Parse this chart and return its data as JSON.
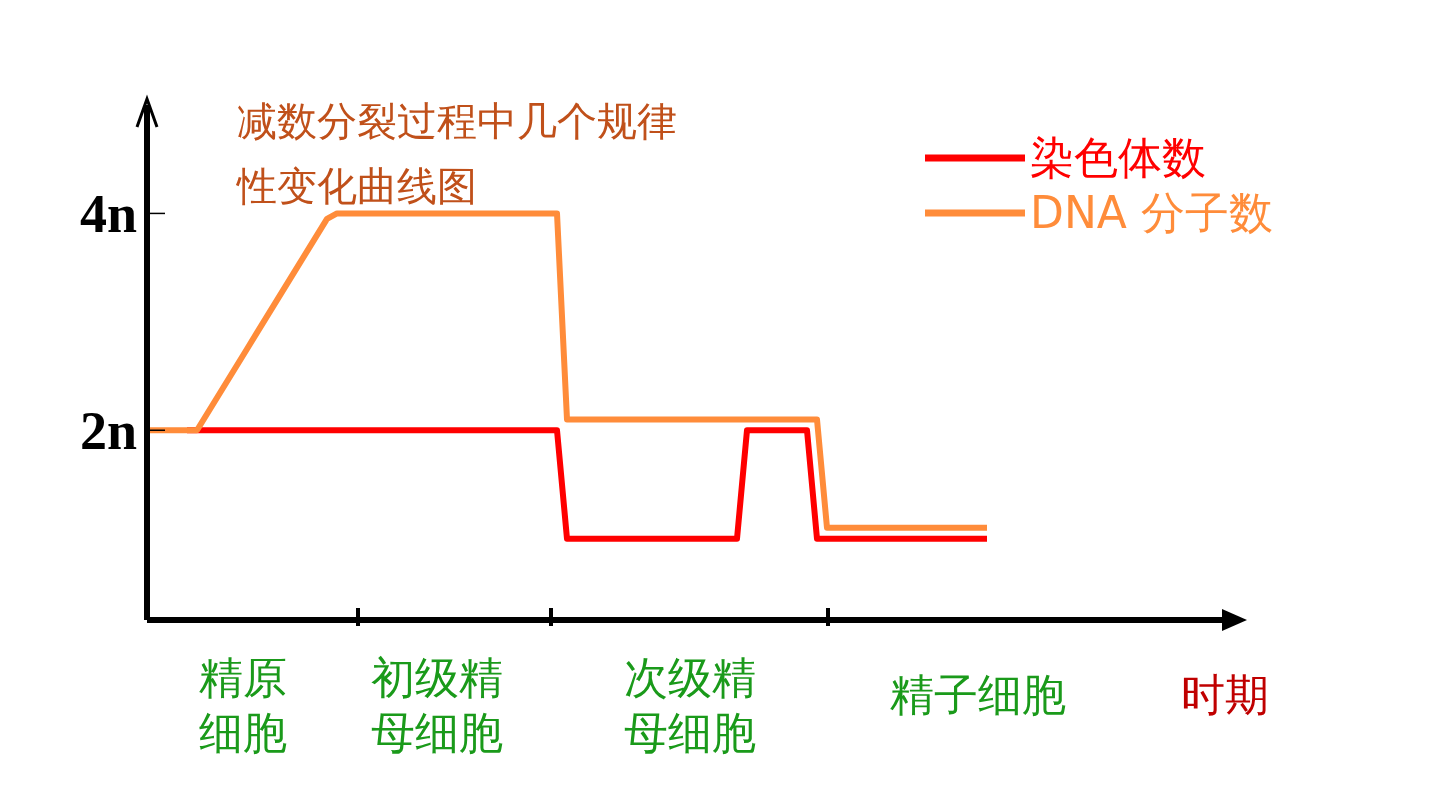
{
  "chart_data": {
    "type": "line",
    "title": "减数分裂过程中几个规律性变化曲线图",
    "xlabel": "时期",
    "categories": [
      null,
      null,
      null,
      null,
      null,
      null,
      null,
      null,
      null,
      null,
      null,
      null,
      null,
      null,
      null,
      null,
      null,
      null,
      null,
      null,
      null,
      null,
      null,
      null,
      null,
      null,
      null,
      null,
      null,
      null,
      null,
      null,
      null,
      null,
      null,
      null,
      null,
      null,
      null,
      null,
      null,
      null,
      null,
      null,
      null,
      null,
      null,
      null,
      null,
      null,
      null,
      null,
      null,
      null,
      null,
      null,
      null,
      null,
      null,
      null,
      null,
      null,
      null,
      null,
      null,
      null,
      null,
      null,
      null,
      null,
      null,
      null,
      null,
      null,
      null,
      null,
      null,
      null,
      null,
      null,
      null,
      null,
      null,
      null,
      null,
      null,
      null,
      null,
      null,
      null,
      null,
      null,
      null,
      null,
      null,
      null,
      null,
      null,
      null,
      null,
      null,
      null,
      null,
      null,
      null,
      null,
      null,
      null,
      null,
      null,
      null
    ],
    "ylim": [
      0.25,
      5
    ],
    "yticks": [
      {
        "value": 2,
        "label": "2n"
      },
      {
        "value": 4,
        "label": "4n"
      }
    ],
    "annotations": [
      "精原细胞",
      "初级精母细胞",
      "次级精母细胞",
      "精子细胞"
    ],
    "series": [
      {
        "name": "染色体数",
        "color": "#ff0000",
        "values": [
          null,
          null,
          null,
          null,
          2,
          2,
          2,
          2,
          2,
          2,
          2,
          2,
          2,
          2,
          2,
          2,
          2,
          2,
          2,
          2,
          2,
          2,
          2,
          2,
          2,
          2,
          2,
          2,
          2,
          2,
          2,
          2,
          2,
          2,
          2,
          2,
          2,
          2,
          2,
          2,
          2,
          2,
          1,
          1,
          1,
          1,
          1,
          1,
          1,
          1,
          1,
          1,
          1,
          1,
          1,
          1,
          1,
          1,
          1,
          1,
          2,
          2,
          2,
          2,
          2,
          2,
          2,
          1,
          1,
          1,
          1,
          1,
          1,
          1,
          1,
          1,
          1,
          1,
          1,
          1,
          1,
          1,
          1,
          1,
          1,
          null,
          null,
          null,
          null,
          null,
          null,
          null,
          null,
          null,
          null,
          null,
          null,
          null,
          null,
          null,
          null,
          null,
          null,
          null,
          null,
          null,
          null,
          null,
          null,
          null,
          null
        ]
      },
      {
        "name": "DNA 分子数",
        "color": "#ff8c3a",
        "values": [
          2,
          2,
          2,
          2,
          2,
          2,
          2.15,
          2.3,
          2.45,
          2.6,
          2.75,
          2.9,
          3.05,
          3.2,
          3.35,
          3.5,
          3.65,
          3.8,
          3.95,
          4,
          4,
          4,
          4,
          4,
          4,
          4,
          4,
          4,
          4,
          4,
          4,
          4,
          4,
          4,
          4,
          4,
          4,
          4,
          4,
          4,
          4,
          4,
          2.1,
          2.1,
          2.1,
          2.1,
          2.1,
          2.1,
          2.1,
          2.1,
          2.1,
          2.1,
          2.1,
          2.1,
          2.1,
          2.1,
          2.1,
          2.1,
          2.1,
          2.1,
          2.1,
          2.1,
          2.1,
          2.1,
          2.1,
          2.1,
          2.1,
          2.1,
          1.1,
          1.1,
          1.1,
          1.1,
          1.1,
          1.1,
          1.1,
          1.1,
          1.1,
          1.1,
          1.1,
          1.1,
          1.1,
          1.1,
          1.1,
          1.1,
          1.1,
          null,
          null,
          null,
          null,
          null,
          null,
          null,
          null,
          null,
          null,
          null,
          null,
          null,
          null,
          null,
          null,
          null,
          null,
          null,
          null,
          null,
          null,
          null,
          null,
          null,
          null
        ]
      }
    ],
    "legend": "top right",
    "grid": false,
    "marker": "none",
    "line_style": "solid"
  }
}
